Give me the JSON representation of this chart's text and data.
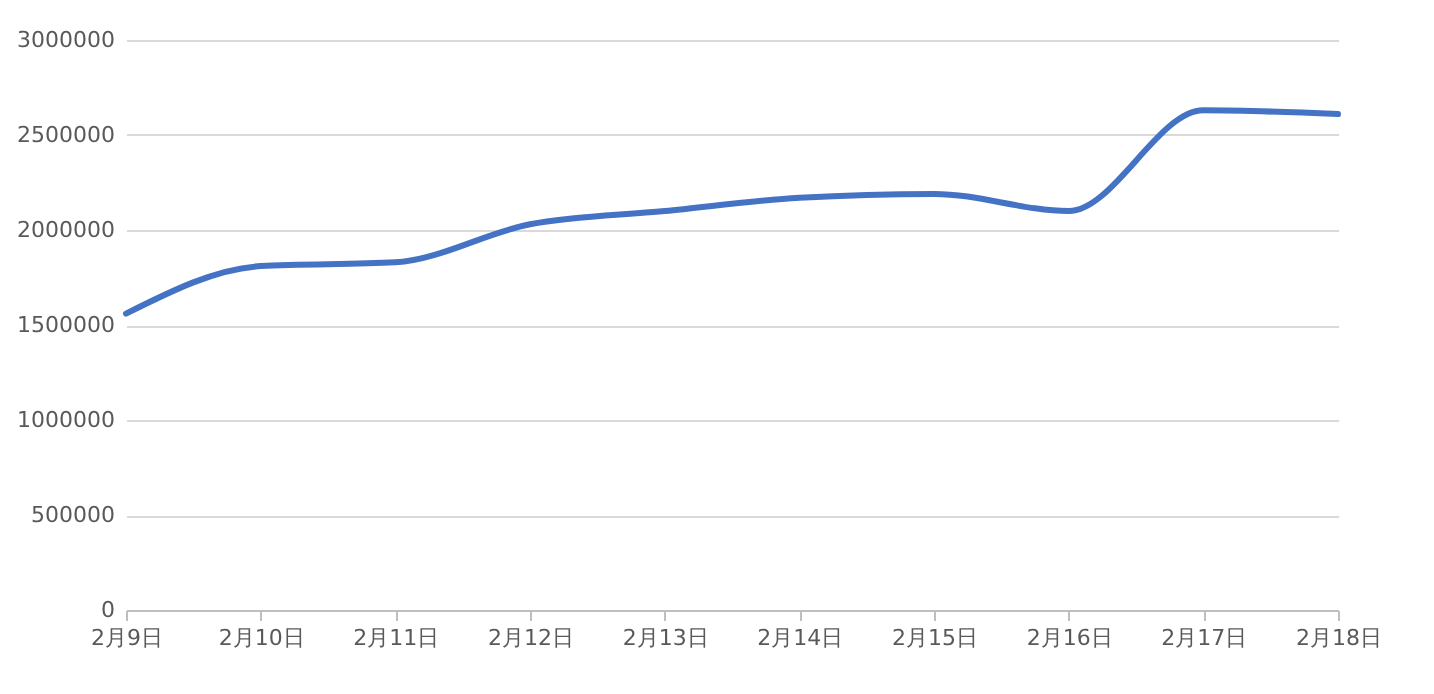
{
  "chart_data": {
    "type": "line",
    "categories": [
      "2月9日",
      "2月10日",
      "2月11日",
      "2月12日",
      "2月13日",
      "2月14日",
      "2月15日",
      "2月16日",
      "2月17日",
      "2月18日"
    ],
    "series": [
      {
        "color": "#4472c4",
        "values": [
          1560000,
          1810000,
          1830000,
          2030000,
          2100000,
          2170000,
          2190000,
          2100000,
          2630000,
          2610000
        ]
      }
    ],
    "ylim": [
      0,
      3000000
    ],
    "yticks": [
      0,
      500000,
      1000000,
      1500000,
      2000000,
      2500000,
      3000000
    ],
    "grid": "y",
    "legend": false,
    "marker": "none",
    "line_style": "solid"
  }
}
